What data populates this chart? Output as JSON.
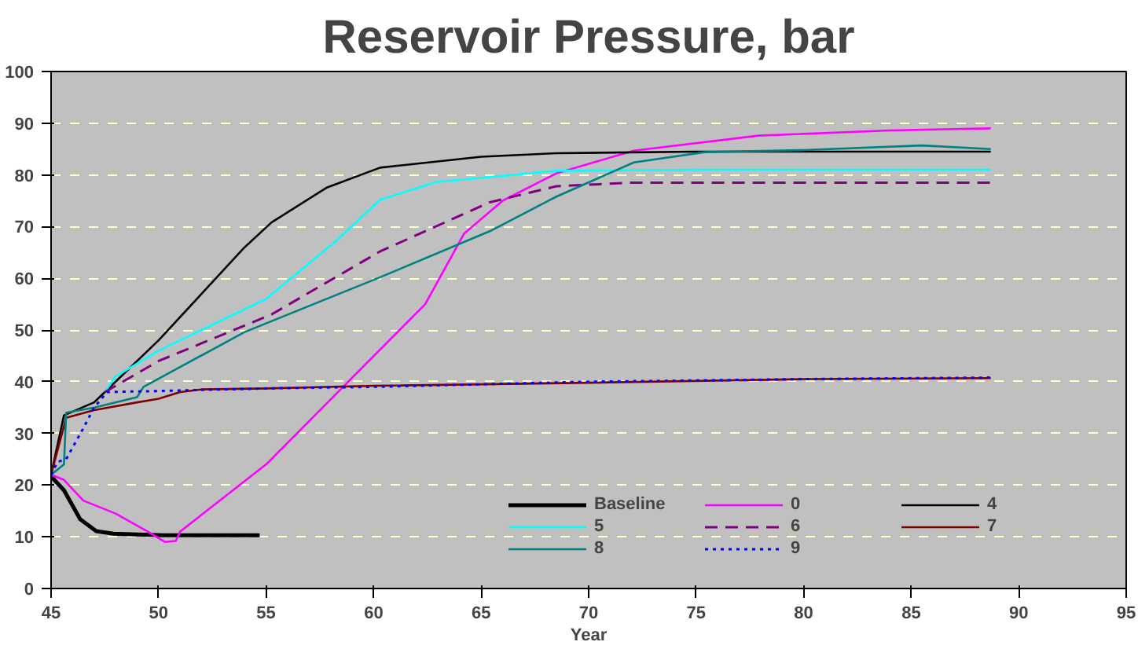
{
  "chart_data": {
    "type": "line",
    "title": "Reservoir Pressure, bar",
    "xlabel": "Year",
    "xlim": [
      45,
      95
    ],
    "ylim": [
      0,
      100
    ],
    "xticks": [
      45,
      50,
      55,
      60,
      65,
      70,
      75,
      80,
      85,
      90,
      95
    ],
    "yticks": [
      0,
      10,
      20,
      30,
      40,
      50,
      60,
      70,
      80,
      90,
      100
    ],
    "grid": "y",
    "legend": "bottom right",
    "line_style": "solid",
    "series": [
      {
        "name": "Baseline",
        "color": "#000000",
        "x": [
          45,
          45.6,
          46.35,
          47.1,
          47.9,
          50.2,
          54.7
        ],
        "values": [
          21.7,
          19,
          13.4,
          11.1,
          10.6,
          10.3,
          10.3
        ]
      },
      {
        "name": "0",
        "color": "#ff00ff",
        "x": [
          45,
          45.6,
          46.5,
          48,
          49.5,
          50.3,
          50.8,
          51,
          55,
          62.4,
          64.2,
          66,
          68.5,
          72.1,
          77.9,
          84,
          88.7
        ],
        "values": [
          22,
          21,
          17,
          14.5,
          11,
          9,
          9.2,
          11,
          24,
          55,
          68.6,
          75,
          80.3,
          84.7,
          87.6,
          88.6,
          89
        ]
      },
      {
        "name": "4",
        "color": "#000000",
        "x": [
          45,
          45.6,
          47,
          47.5,
          48,
          50,
          52,
          54,
          55.25,
          57.8,
          60.3,
          65,
          68.5,
          75,
          88.7
        ],
        "values": [
          22,
          33.5,
          36,
          38,
          40,
          48,
          57,
          66,
          70.8,
          77.5,
          81.4,
          83.5,
          84.2,
          84.5,
          84.5
        ]
      },
      {
        "name": "5",
        "color": "#00ffff",
        "x": [
          47.5,
          48,
          50,
          55,
          58.3,
          60.3,
          62.9,
          68.5,
          75,
          88.7
        ],
        "values": [
          38,
          41,
          46,
          56,
          67.4,
          75.2,
          78.6,
          80.8,
          81,
          81
        ]
      },
      {
        "name": "6",
        "color": "#800080",
        "line_style": "dashed",
        "x": [
          47.5,
          50,
          55.25,
          60.3,
          65.4,
          68.5,
          72,
          88.7
        ],
        "values": [
          38,
          44,
          53,
          65.2,
          74.7,
          77.8,
          78.5,
          78.5
        ]
      },
      {
        "name": "7",
        "color": "#800000",
        "x": [
          45,
          45.7,
          47,
          49,
          50,
          51,
          52,
          55,
          60,
          70,
          80,
          88.7
        ],
        "values": [
          22,
          33,
          34.5,
          36,
          36.7,
          38,
          38.5,
          38.7,
          39.2,
          39.8,
          40.5,
          40.7
        ]
      },
      {
        "name": "8",
        "color": "#008080",
        "x": [
          45,
          45.6,
          45.7,
          47,
          49,
          49.3,
          54,
          60.3,
          65.4,
          68.5,
          72.1,
          75.4,
          80,
          85.5,
          88.7
        ],
        "values": [
          22,
          24,
          34,
          35,
          37,
          39,
          49.6,
          60.2,
          69.1,
          75.8,
          82.4,
          84.4,
          84.8,
          85.7,
          85
        ]
      },
      {
        "name": "9",
        "color": "#0000ff",
        "line_style": "dotted",
        "x": [
          45,
          45.3,
          45.7,
          46.5,
          47,
          47.6,
          50,
          55,
          60,
          70,
          80,
          88.7
        ],
        "values": [
          22,
          24.5,
          25,
          31,
          35,
          38,
          38.2,
          38.7,
          39,
          40,
          40.5,
          40.8
        ]
      }
    ]
  }
}
